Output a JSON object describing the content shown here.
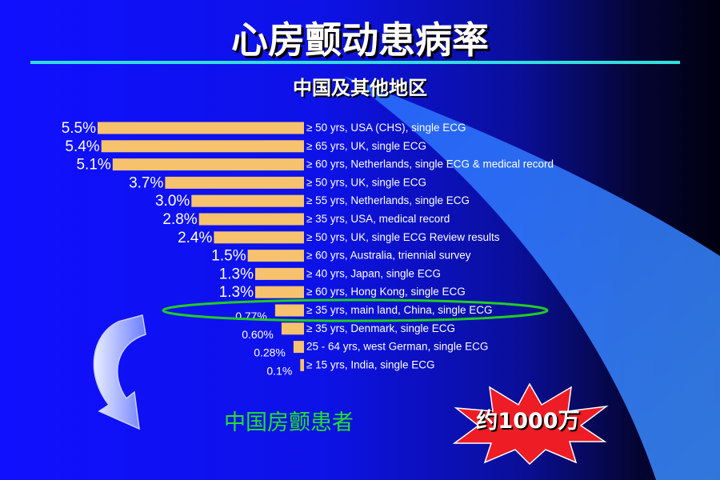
{
  "slide": {
    "title": "心房颤动患病率",
    "subtitle": "中国及其他地区",
    "highlight_label": "中国房颤患者",
    "burst_label": "约1000万",
    "colors": {
      "background": "#1010ff",
      "bar": "#f6c26e",
      "rule": "#33dddd",
      "ellipse": "#22cc22",
      "highlight_text": "#22e22a",
      "burst": "#ee1c24"
    }
  },
  "chart_data": {
    "type": "bar",
    "orientation": "horizontal",
    "bar_alignment": "right",
    "highlighted_category_index": 10,
    "rows": [
      {
        "value": 5.5,
        "label": "5.5%",
        "category": "≥ 50 yrs, USA (CHS), single ECG"
      },
      {
        "value": 5.4,
        "label": "5.4%",
        "category": "≥ 65 yrs, UK, single ECG"
      },
      {
        "value": 5.1,
        "label": "5.1%",
        "category": "≥ 60 yrs, Netherlands, single ECG & medical record"
      },
      {
        "value": 3.7,
        "label": "3.7%",
        "category": "≥ 50 yrs, UK, single ECG"
      },
      {
        "value": 3.0,
        "label": "3.0%",
        "category": "≥ 55 yrs, Netherlands, single ECG"
      },
      {
        "value": 2.8,
        "label": "2.8%",
        "category": "≥ 35 yrs, USA, medical record"
      },
      {
        "value": 2.4,
        "label": "2.4%",
        "category": "≥ 50 yrs, UK, single ECG Review results"
      },
      {
        "value": 1.5,
        "label": "1.5%",
        "category": "≥ 60 yrs, Australia, triennial survey"
      },
      {
        "value": 1.3,
        "label": "1.3%",
        "category": "≥ 40 yrs, Japan, single ECG"
      },
      {
        "value": 1.3,
        "label": "1.3%",
        "category": "≥ 60 yrs, Hong Kong, single ECG"
      },
      {
        "value": 0.77,
        "label": "0.77%",
        "category": "≥ 35 yrs, main land, China, single ECG"
      },
      {
        "value": 0.6,
        "label": "0.60%",
        "category": "≥ 35 yrs, Denmark, single ECG"
      },
      {
        "value": 0.28,
        "label": "0.28%",
        "category": "25 - 64 yrs, west German, single ECG"
      },
      {
        "value": 0.1,
        "label": "0.1%",
        "category": "≥ 15 yrs, India, single ECG"
      }
    ]
  }
}
